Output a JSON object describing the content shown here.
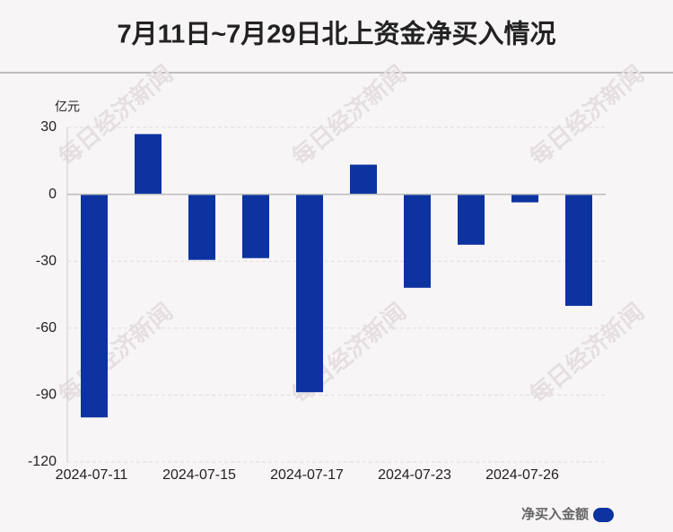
{
  "chart_data": {
    "type": "bar",
    "title": "7月11日~7月29日北上资金净买入情况",
    "y_unit": "亿元",
    "watermark": "每日经济新闻",
    "categories": [
      "2024-07-11",
      null,
      "2024-07-15",
      null,
      "2024-07-17",
      null,
      "2024-07-23",
      null,
      "2024-07-26",
      null
    ],
    "series": [
      {
        "name": "净买入金额",
        "color": "#0c33a0",
        "values": [
          -100,
          27,
          -29.4,
          -28.6,
          -88.7,
          13.3,
          -41.9,
          -22.6,
          -3.6,
          -50
        ]
      }
    ],
    "ylim": [
      -120,
      30
    ],
    "yticks": [
      30,
      0,
      -30,
      -60,
      -90,
      -120
    ],
    "grid": true,
    "legend": "bottom-right"
  }
}
